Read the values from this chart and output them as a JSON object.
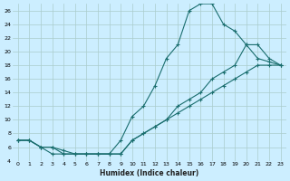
{
  "xlabel": "Humidex (Indice chaleur)",
  "bg_color": "#cceeff",
  "grid_color": "#aacccc",
  "line_color": "#1a6e6e",
  "xlim": [
    -0.5,
    23.5
  ],
  "ylim": [
    4,
    27
  ],
  "xticks": [
    0,
    1,
    2,
    3,
    4,
    5,
    6,
    7,
    8,
    9,
    10,
    11,
    12,
    13,
    14,
    15,
    16,
    17,
    18,
    19,
    20,
    21,
    22,
    23
  ],
  "yticks": [
    4,
    6,
    8,
    10,
    12,
    14,
    16,
    18,
    20,
    22,
    24,
    26
  ],
  "line1_x": [
    0,
    1,
    2,
    3,
    4,
    5,
    6,
    7,
    8,
    9,
    10,
    11,
    12,
    13,
    14,
    15,
    16,
    17,
    18,
    19,
    20,
    21,
    22,
    23
  ],
  "line1_y": [
    7,
    7,
    6,
    5,
    5,
    5,
    5,
    5,
    5,
    7,
    10.5,
    12,
    15,
    19,
    21,
    26,
    27,
    27,
    24,
    23,
    21,
    19,
    18.5,
    18
  ],
  "line2_x": [
    0,
    1,
    2,
    3,
    4,
    5,
    6,
    7,
    8,
    9,
    10,
    11,
    12,
    13,
    14,
    15,
    16,
    17,
    18,
    19,
    20,
    21,
    22,
    23
  ],
  "line2_y": [
    7,
    7,
    6,
    6,
    5.5,
    5,
    5,
    5,
    5,
    5,
    7,
    8,
    9,
    10,
    12,
    13,
    14,
    16,
    17,
    18,
    21,
    21,
    19,
    18
  ],
  "line3_x": [
    0,
    1,
    2,
    3,
    4,
    5,
    6,
    7,
    8,
    9,
    10,
    11,
    12,
    13,
    14,
    15,
    16,
    17,
    18,
    19,
    20,
    21,
    22,
    23
  ],
  "line3_y": [
    7,
    7,
    6,
    6,
    5,
    5,
    5,
    5,
    5,
    5,
    7,
    8,
    9,
    10,
    11,
    12,
    13,
    14,
    15,
    16,
    17,
    18,
    18,
    18
  ]
}
